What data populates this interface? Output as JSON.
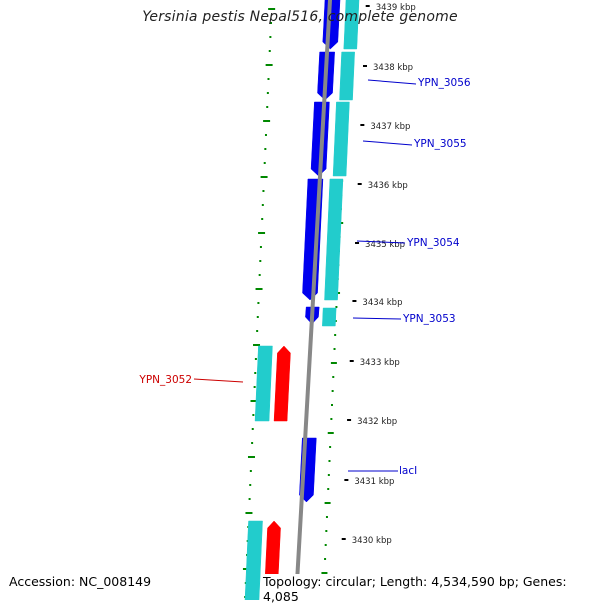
{
  "title": "Yersinia pestis Nepal516, complete genome",
  "accession_label": "Accession: NC_008149",
  "topology_label": "Topology: circular; Length: 4,534,590 bp; Genes: 4,085",
  "colors": {
    "forward_cds": "#0000ee",
    "forward_rna": "#22cccc",
    "reverse_cds": "#ff0000",
    "backbone": "#888888",
    "gc_ticks": "#008800",
    "forward_label": "#0000cc",
    "reverse_label": "#cc0000"
  },
  "scale": {
    "unit": "kbp",
    "ticks": [
      "3430 kbp",
      "3431 kbp",
      "3432 kbp",
      "3433 kbp",
      "3434 kbp",
      "3435 kbp",
      "3436 kbp",
      "3437 kbp",
      "3438 kbp",
      "3439 kbp"
    ]
  },
  "genes": [
    {
      "label": "YPN_3056",
      "strand": "forward"
    },
    {
      "label": "YPN_3055",
      "strand": "forward"
    },
    {
      "label": "YPN_3054",
      "strand": "forward"
    },
    {
      "label": "YPN_3053",
      "strand": "forward"
    },
    {
      "label": "YPN_3052",
      "strand": "reverse"
    },
    {
      "label": "lacI",
      "strand": "forward"
    }
  ]
}
